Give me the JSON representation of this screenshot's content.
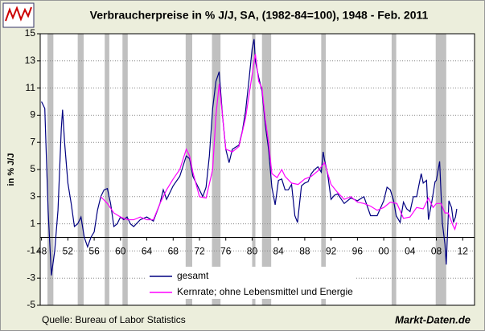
{
  "chart_data": {
    "type": "line",
    "title": "Verbraucherpreise in % J/J, SA, (1982-84=100), 1948 - Feb. 2011",
    "y_label": "in % J/J",
    "source": "Quelle: Bureau of Labor Statistics",
    "watermark": "Markt-Daten.de",
    "xlim": [
      1947.8,
      2013.8
    ],
    "ylim": [
      -5,
      15
    ],
    "grid": true,
    "xticks": [
      {
        "value": 1948,
        "label": "48"
      },
      {
        "value": 1952,
        "label": "52"
      },
      {
        "value": 1956,
        "label": "56"
      },
      {
        "value": 1960,
        "label": "60"
      },
      {
        "value": 1964,
        "label": "64"
      },
      {
        "value": 1968,
        "label": "68"
      },
      {
        "value": 1972,
        "label": "72"
      },
      {
        "value": 1976,
        "label": "76"
      },
      {
        "value": 1980,
        "label": "80"
      },
      {
        "value": 1984,
        "label": "84"
      },
      {
        "value": 1988,
        "label": "88"
      },
      {
        "value": 1992,
        "label": "92"
      },
      {
        "value": 1996,
        "label": "96"
      },
      {
        "value": 2000,
        "label": "00"
      },
      {
        "value": 2004,
        "label": "04"
      },
      {
        "value": 2008,
        "label": "08"
      },
      {
        "value": 2012,
        "label": "12"
      }
    ],
    "yticks": [
      -5,
      -3,
      -1,
      1,
      3,
      5,
      7,
      9,
      11,
      13,
      15
    ],
    "shaded_periods": [
      [
        1948.9,
        1949.8
      ],
      [
        1953.5,
        1954.4
      ],
      [
        1957.6,
        1958.3
      ],
      [
        1960.3,
        1961.1
      ],
      [
        1969.9,
        1970.9
      ],
      [
        1973.9,
        1975.2
      ],
      [
        1980.0,
        1980.5
      ],
      [
        1981.5,
        1982.9
      ],
      [
        1990.5,
        1991.2
      ],
      [
        2001.2,
        2001.9
      ],
      [
        2007.9,
        2009.5
      ]
    ],
    "shade_color": "#c0c0c0",
    "series": [
      {
        "name": "gesamt",
        "color": "#000080",
        "x": [
          1948.0,
          1948.5,
          1949.0,
          1949.5,
          1950.0,
          1950.5,
          1951.0,
          1951.2,
          1951.5,
          1952.0,
          1952.5,
          1953.0,
          1953.5,
          1954.0,
          1954.5,
          1955.0,
          1955.5,
          1956.0,
          1956.5,
          1957.0,
          1957.5,
          1958.0,
          1958.5,
          1959.0,
          1959.5,
          1960.0,
          1960.5,
          1961.0,
          1961.5,
          1962.0,
          1963.0,
          1964.0,
          1965.0,
          1966.0,
          1966.5,
          1967.0,
          1968.0,
          1969.0,
          1970.0,
          1970.5,
          1971.0,
          1972.0,
          1972.5,
          1973.0,
          1973.5,
          1974.0,
          1974.5,
          1975.0,
          1975.5,
          1976.0,
          1976.5,
          1977.0,
          1978.0,
          1978.5,
          1979.0,
          1979.5,
          1980.0,
          1980.3,
          1980.5,
          1981.0,
          1981.5,
          1982.0,
          1982.5,
          1983.0,
          1983.5,
          1984.0,
          1984.5,
          1985.0,
          1985.5,
          1986.0,
          1986.5,
          1986.9,
          1987.5,
          1988.0,
          1988.5,
          1989.0,
          1989.5,
          1990.0,
          1990.5,
          1990.8,
          1991.0,
          1991.5,
          1992.0,
          1992.5,
          1993.0,
          1994.0,
          1995.0,
          1996.0,
          1997.0,
          1998.0,
          1999.0,
          2000.0,
          2000.5,
          2001.0,
          2001.5,
          2001.9,
          2002.5,
          2003.0,
          2003.5,
          2004.0,
          2004.5,
          2005.0,
          2005.7,
          2006.0,
          2006.5,
          2006.8,
          2007.3,
          2007.8,
          2008.0,
          2008.5,
          2008.9,
          2009.3,
          2009.5,
          2009.9,
          2010.3,
          2010.6,
          2010.9,
          2011.1
        ],
        "values": [
          10,
          9.5,
          2,
          -2.8,
          -1,
          2,
          8,
          9.4,
          7,
          4,
          2.5,
          0.8,
          1,
          1.5,
          0,
          -0.7,
          0,
          0.4,
          2,
          3,
          3.5,
          3.6,
          2.5,
          0.8,
          1,
          1.5,
          1.3,
          1.5,
          1,
          0.8,
          1.3,
          1.5,
          1.2,
          2.5,
          3.5,
          2.8,
          3.8,
          4.5,
          6,
          5.8,
          4.5,
          3.5,
          3,
          3.7,
          6,
          9.5,
          11.5,
          12.2,
          9,
          6.5,
          5.5,
          6.5,
          6.8,
          7.8,
          9.3,
          11.5,
          13.9,
          14.6,
          13,
          11.8,
          10.8,
          8.3,
          6.5,
          3.7,
          2.4,
          4.2,
          4.3,
          3.5,
          3.5,
          3.9,
          1.6,
          1.1,
          3.8,
          4,
          4.1,
          4.7,
          5,
          5.2,
          4.8,
          6.3,
          5.7,
          4.6,
          2.8,
          3.1,
          3.2,
          2.5,
          2.9,
          2.7,
          3,
          1.6,
          1.6,
          2.7,
          3.7,
          3.5,
          2.7,
          1.6,
          1.1,
          2.6,
          2.1,
          1.9,
          3,
          3,
          4.7,
          4,
          4.2,
          1.3,
          2.6,
          4.1,
          4.2,
          5.6,
          1.1,
          -0.5,
          -2,
          2.7,
          2.2,
          1.1,
          1.5,
          2.1
        ]
      },
      {
        "name": "Kernrate; ohne Lebensmittel und Energie",
        "color": "#ff00ff",
        "x": [
          1957.0,
          1958.0,
          1959.0,
          1960.0,
          1961.0,
          1962.0,
          1963.0,
          1964.0,
          1965.0,
          1966.0,
          1967.0,
          1968.0,
          1969.0,
          1970.0,
          1970.5,
          1971.0,
          1972.0,
          1973.0,
          1974.0,
          1974.5,
          1975.0,
          1975.5,
          1976.0,
          1977.0,
          1978.0,
          1979.0,
          1980.0,
          1980.5,
          1981.0,
          1981.5,
          1982.0,
          1982.5,
          1983.0,
          1983.8,
          1984.5,
          1985.0,
          1986.0,
          1987.0,
          1988.0,
          1989.0,
          1990.0,
          1991.0,
          1992.0,
          1993.0,
          1994.0,
          1995.0,
          1996.0,
          1997.0,
          1998.0,
          1999.0,
          2000.0,
          2001.0,
          2002.0,
          2003.0,
          2004.0,
          2005.0,
          2006.0,
          2006.8,
          2007.5,
          2008.0,
          2008.7,
          2009.3,
          2009.8,
          2010.5,
          2010.8,
          2011.1
        ],
        "values": [
          3,
          2.5,
          1.8,
          1.5,
          1.3,
          1.3,
          1.5,
          1.3,
          1.3,
          2.5,
          3.5,
          4.3,
          5,
          6.5,
          6,
          4.8,
          3,
          2.9,
          5,
          9,
          11.3,
          9,
          6.5,
          6.3,
          6.7,
          8.8,
          12,
          13.5,
          11.5,
          11,
          8.7,
          7,
          4.7,
          4.4,
          5,
          4.5,
          4,
          3.9,
          4.3,
          4.5,
          4.9,
          5.5,
          3.9,
          3.3,
          2.8,
          3,
          2.6,
          2.5,
          2.3,
          2,
          2.2,
          2.6,
          2.5,
          1.4,
          1.5,
          2.2,
          2.1,
          2.9,
          2.2,
          2.5,
          2.5,
          1.8,
          1.8,
          0.9,
          0.6,
          1.1
        ]
      }
    ]
  }
}
